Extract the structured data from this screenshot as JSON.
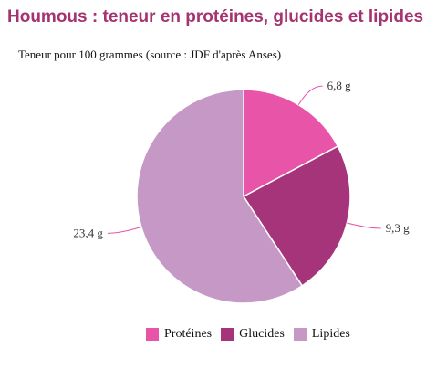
{
  "header": {
    "title": "Houmous : teneur en protéines, glucides et lipides",
    "subtitle": "Teneur pour 100 grammes (source : JDF d'après Anses)"
  },
  "chart_data": {
    "type": "pie",
    "title": "Houmous : teneur en protéines, glucides et lipides",
    "subtitle": "Teneur pour 100 grammes (source : JDF d'après Anses)",
    "unit": "g",
    "legend_position": "bottom",
    "slices": [
      {
        "name": "Protéines",
        "value": 6.8,
        "label": "6,8 g",
        "color": "#e855a8"
      },
      {
        "name": "Glucides",
        "value": 9.3,
        "label": "9,3 g",
        "color": "#a5347a"
      },
      {
        "name": "Lipides",
        "value": 23.4,
        "label": "23,4 g",
        "color": "#c598c6"
      }
    ]
  },
  "colors": {
    "title": "#a5336f",
    "connector": "#e855a8"
  }
}
